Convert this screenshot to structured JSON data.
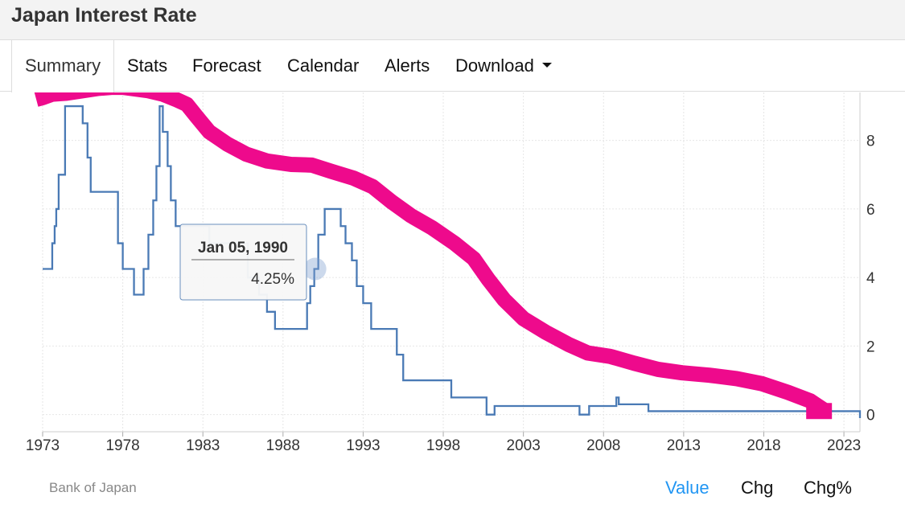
{
  "header": {
    "title": "Japan Interest Rate"
  },
  "tabs": [
    {
      "label": "Summary",
      "active": true
    },
    {
      "label": "Stats"
    },
    {
      "label": "Forecast"
    },
    {
      "label": "Calendar"
    },
    {
      "label": "Alerts"
    },
    {
      "label": "Download",
      "dropdown": true
    }
  ],
  "footer": {
    "source": "Bank of Japan",
    "modes": [
      {
        "label": "Value",
        "active": true
      },
      {
        "label": "Chg"
      },
      {
        "label": "Chg%"
      }
    ]
  },
  "tooltip": {
    "date": "Jan 05, 1990",
    "value": "4.25%"
  },
  "colors": {
    "line": "#4a7ab5",
    "annotation": "#ee0a8c",
    "active_mode": "#2196f3"
  },
  "chart_data": {
    "type": "line",
    "x_ticks": [
      "1973",
      "1978",
      "1983",
      "1988",
      "1993",
      "1998",
      "2003",
      "2008",
      "2013",
      "2018",
      "2023"
    ],
    "y_ticks": [
      "0",
      "2",
      "4",
      "6",
      "8"
    ],
    "xlim": [
      1973,
      2024
    ],
    "ylim": [
      -0.5,
      9.4
    ],
    "grid": true,
    "y_axis_side": "right",
    "series": [
      {
        "step": true,
        "x": [
          1973.0,
          1973.5,
          1973.6,
          1973.75,
          1973.85,
          1974.0,
          1974.4,
          1975.2,
          1975.5,
          1975.8,
          1976.0,
          1977.7,
          1978.0,
          1978.2,
          1978.7,
          1979.3,
          1979.6,
          1979.9,
          1980.1,
          1980.3,
          1980.5,
          1980.8,
          1981.0,
          1981.3,
          1981.6,
          1982.2,
          1983.0,
          1983.4,
          1984.5,
          1985.0,
          1985.8,
          1986.5,
          1987.0,
          1987.5,
          1988.0,
          1989.0,
          1989.5,
          1989.7,
          1989.95,
          1990.2,
          1990.6,
          1991.3,
          1991.6,
          1991.9,
          1992.3,
          1992.6,
          1993.0,
          1993.5,
          1995.1,
          1995.5,
          1998.5,
          1999.1,
          2000.7,
          2001.2,
          2006.5,
          2007.1,
          2008.8,
          2008.95,
          2010.8,
          2016.0,
          2024.0
        ],
        "y": [
          4.25,
          4.25,
          5.0,
          5.5,
          6.0,
          7.0,
          9.0,
          9.0,
          8.5,
          7.5,
          6.5,
          5.0,
          4.25,
          4.25,
          3.5,
          4.25,
          5.25,
          6.25,
          7.25,
          9.0,
          8.25,
          7.25,
          6.25,
          5.5,
          5.5,
          5.5,
          5.5,
          5.0,
          5.0,
          5.0,
          4.0,
          3.5,
          3.0,
          2.5,
          2.5,
          2.5,
          3.25,
          3.75,
          4.25,
          5.25,
          6.0,
          6.0,
          5.5,
          5.0,
          4.5,
          3.75,
          3.25,
          2.5,
          1.75,
          1.0,
          0.5,
          0.5,
          0.0,
          0.25,
          0.0,
          0.25,
          0.5,
          0.3,
          0.1,
          0.1,
          -0.1
        ]
      }
    ],
    "annotation_stroke": {
      "x": [
        1972.6,
        1973.0,
        1973.6,
        1974.5,
        1975.5,
        1976.5,
        1977.3,
        1978.0,
        1978.8,
        1979.6,
        1980.5,
        1981.3,
        1982.0,
        1982.6,
        1983.4,
        1984.5,
        1985.7,
        1987.0,
        1988.5,
        1989.8,
        1991.0,
        1992.4,
        1993.6,
        1994.8,
        1996.0,
        1997.3,
        1998.7,
        1999.9,
        2000.8,
        2001.8,
        2003.0,
        2004.4,
        2005.8,
        2007.0,
        2008.4,
        2009.9,
        2011.4,
        2012.9,
        2014.6,
        2016.3,
        2017.9,
        2019.5,
        2020.9,
        2021.7,
        2021.75
      ],
      "y": [
        9.2,
        9.25,
        9.35,
        9.38,
        9.45,
        9.52,
        9.55,
        9.55,
        9.5,
        9.45,
        9.35,
        9.2,
        9.05,
        8.7,
        8.25,
        7.9,
        7.6,
        7.4,
        7.3,
        7.28,
        7.1,
        6.9,
        6.65,
        6.2,
        5.8,
        5.45,
        5.0,
        4.55,
        3.95,
        3.35,
        2.8,
        2.4,
        2.05,
        1.8,
        1.7,
        1.5,
        1.32,
        1.22,
        1.15,
        1.05,
        0.9,
        0.65,
        0.4,
        0.15,
        0.15
      ]
    }
  }
}
